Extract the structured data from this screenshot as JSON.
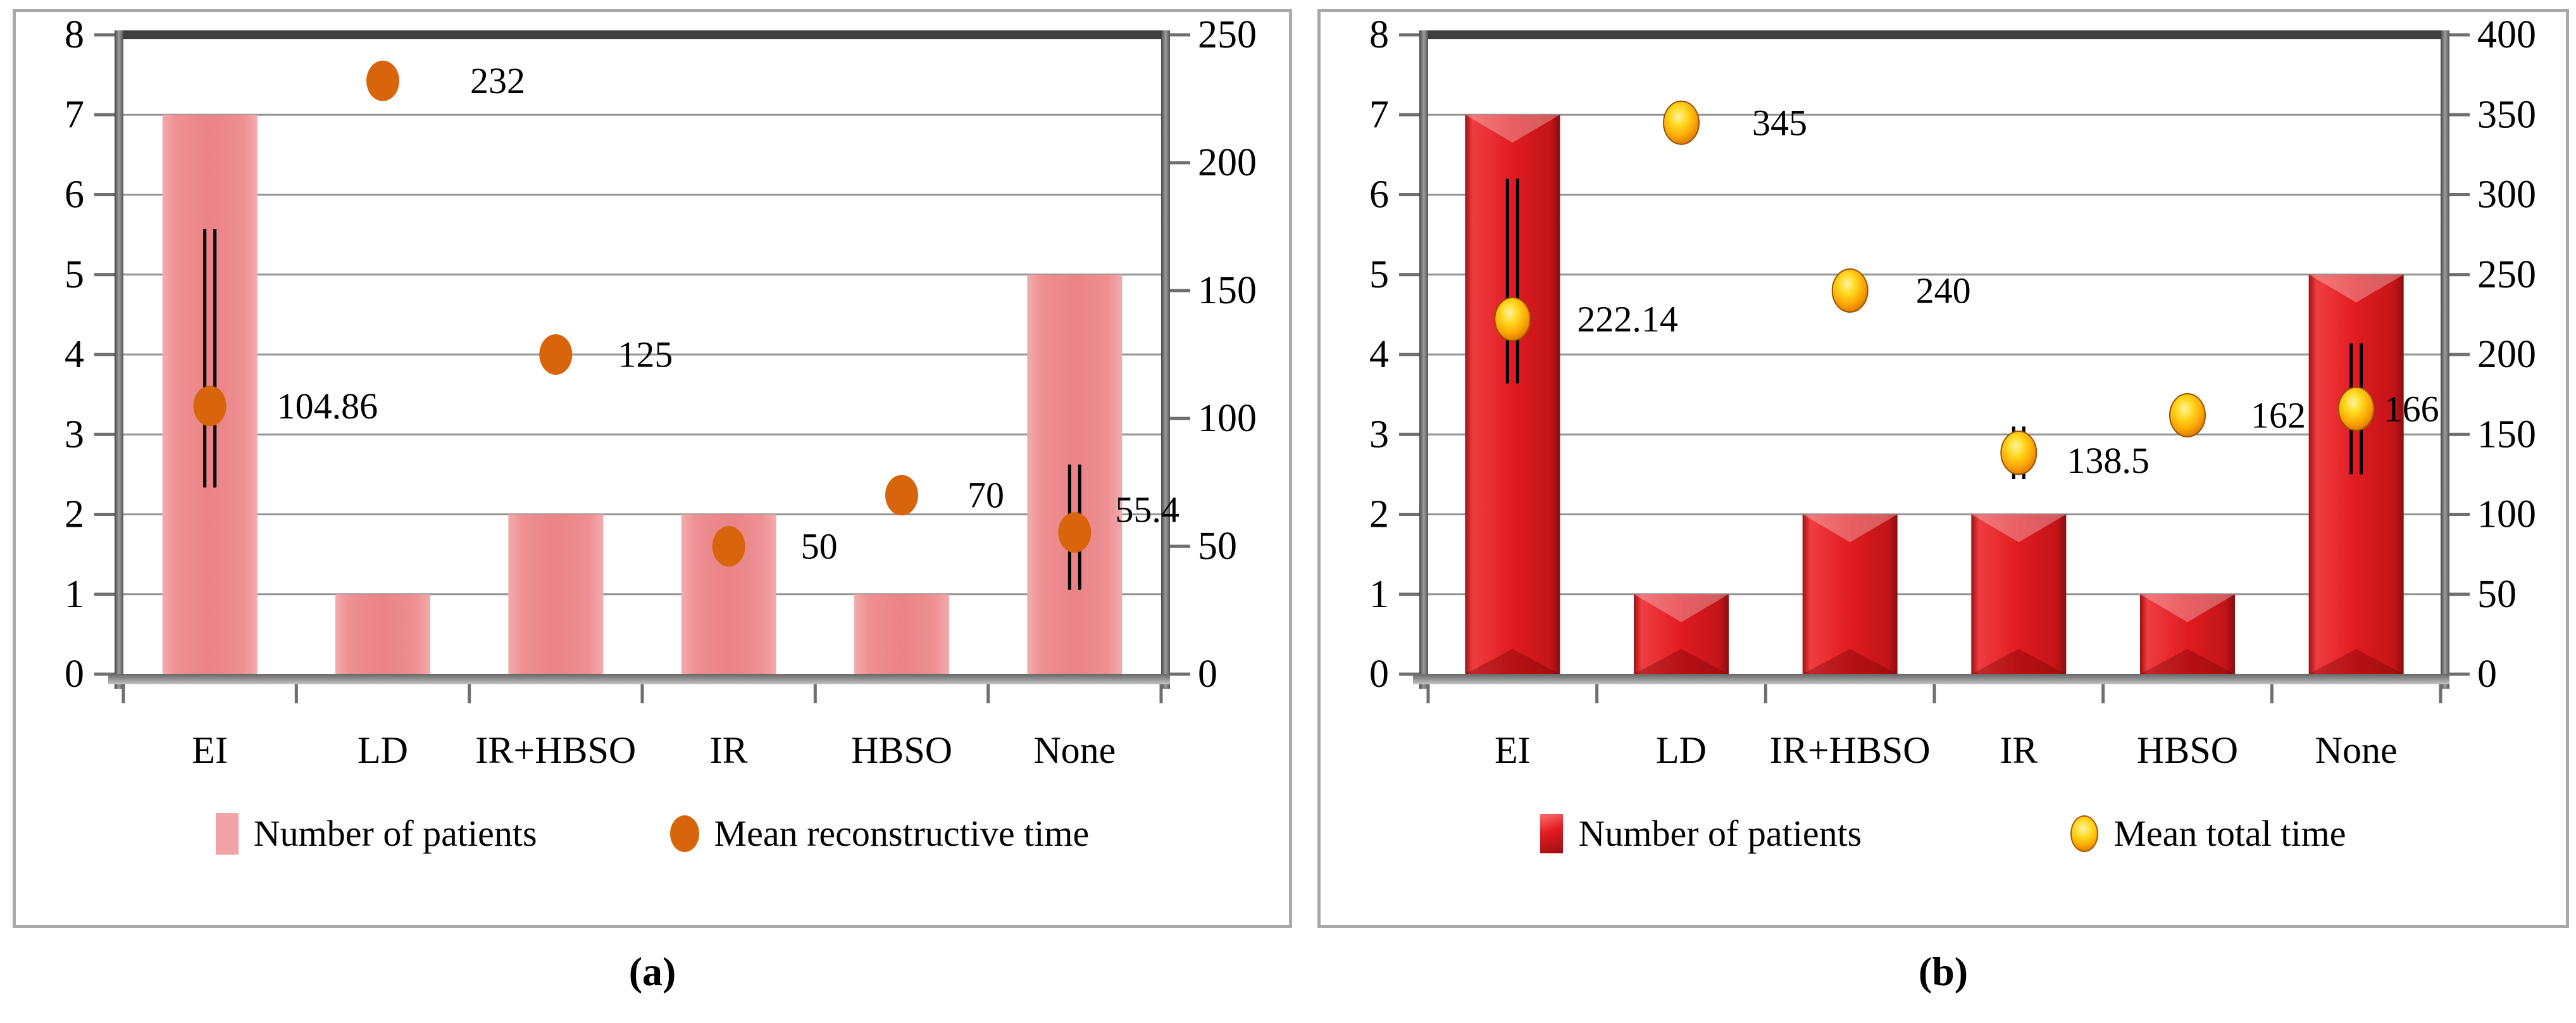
{
  "chart_data": [
    {
      "type": "bar",
      "caption": "(a)",
      "categories": [
        "EI",
        "LD",
        "IR+HBSO",
        "IR",
        "HBSO",
        "None"
      ],
      "left_axis": {
        "min": 0,
        "max": 8,
        "ticks": [
          "0",
          "1",
          "2",
          "3",
          "4",
          "5",
          "6",
          "7",
          "8"
        ]
      },
      "right_axis": {
        "min": 0,
        "max": 250,
        "ticks": [
          "0",
          "50",
          "100",
          "150",
          "200",
          "250"
        ]
      },
      "grid": true,
      "legend_position": "bottom",
      "bar_series": {
        "name": "Number of patients",
        "axis": "left",
        "values": [
          7,
          1,
          2,
          2,
          1,
          5
        ],
        "color": "#ec8a8c"
      },
      "point_series": {
        "name": "Mean reconstructive time",
        "axis": "right",
        "values": [
          104.86,
          232,
          125,
          50,
          70,
          55.4
        ],
        "labels": [
          "104.86",
          "232",
          "125",
          "50",
          "70",
          "55.4"
        ],
        "errors": [
          [
            73,
            174
          ],
          null,
          [
            119,
            131
          ],
          [
            44,
            56
          ],
          null,
          [
            33,
            82
          ]
        ],
        "color": "#d8650b"
      }
    },
    {
      "type": "bar",
      "caption": "(b)",
      "categories": [
        "EI",
        "LD",
        "IR+HBSO",
        "IR",
        "HBSO",
        "None"
      ],
      "left_axis": {
        "min": 0,
        "max": 8,
        "ticks": [
          "0",
          "1",
          "2",
          "3",
          "4",
          "5",
          "6",
          "7",
          "8"
        ]
      },
      "right_axis": {
        "min": 0,
        "max": 400,
        "ticks": [
          "0",
          "50",
          "100",
          "150",
          "200",
          "250",
          "300",
          "350",
          "400"
        ]
      },
      "grid": true,
      "legend_position": "bottom",
      "bar_series": {
        "name": "Number of patients",
        "axis": "left",
        "values": [
          7,
          1,
          2,
          2,
          1,
          5
        ],
        "color": "#e01b20"
      },
      "point_series": {
        "name": "Mean total time",
        "axis": "right",
        "values": [
          222.14,
          345,
          240,
          138.5,
          162,
          166
        ],
        "labels": [
          "222.14",
          "345",
          "240",
          "138.5",
          "162",
          "166"
        ],
        "errors": [
          [
            182,
            310
          ],
          null,
          null,
          [
            122,
            155
          ],
          null,
          [
            125,
            207
          ]
        ],
        "color": "#ffc614"
      }
    }
  ]
}
